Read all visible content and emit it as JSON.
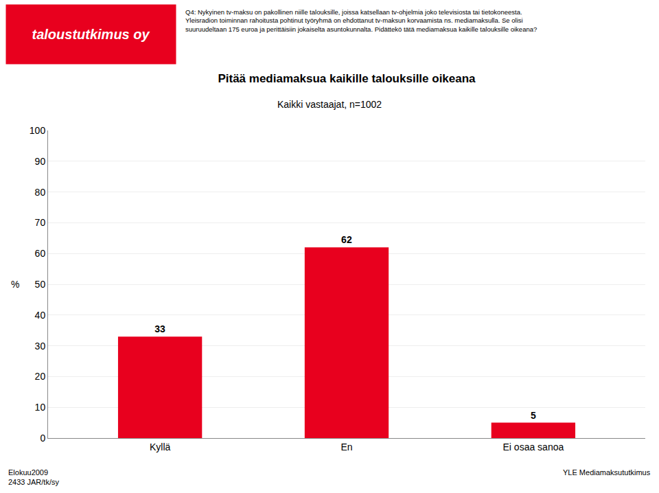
{
  "chart_data": {
    "type": "bar",
    "title": "Pitää mediamaksua kaikille talouksille oikeana",
    "subtitle": "Kaikki vastaajat, n=1002",
    "ylabel": "%",
    "categories": [
      "Kyllä",
      "En",
      "Ei osaa sanoa"
    ],
    "values": [
      33,
      62,
      5
    ],
    "color": "#e8001e",
    "ylim": [
      0,
      100
    ],
    "yticks": [
      0,
      10,
      20,
      30,
      40,
      50,
      60,
      70,
      80,
      90,
      100
    ],
    "grid": true,
    "data_labels": true,
    "annotations": [
      "taloustutkimus oy",
      "Q4: Nykyinen tv-maksu on pakollinen niille talouksille, joissa katsellaan tv-ohjelmia joko televisiosta tai tietokoneesta.\nYleisradion toiminnan rahoitusta pohtinut työryhmä on ehdottanut tv-maksun korvaamista ns. mediamaksulla. Se olisi\nsuuruudeltaan 175 euroa ja perittäisiin jokaiselta asuntokunnalta. Pidättekö tätä mediamaksua kaikille talouksille oikeana?",
      "Elokuu2009\n2433 JAR/tk/sy",
      "YLE Mediamaksututkimus"
    ]
  }
}
